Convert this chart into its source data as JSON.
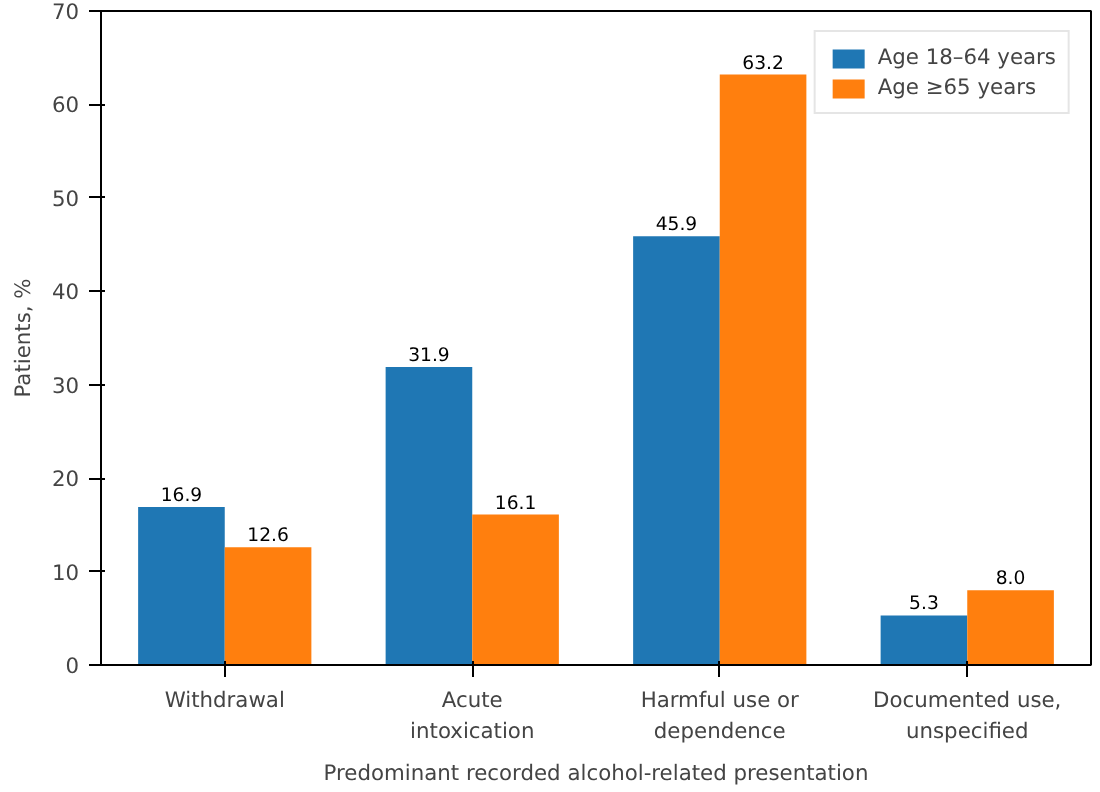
{
  "chart_data": {
    "type": "bar",
    "xlabel": "Predominant recorded alcohol-related presentation",
    "ylabel": "Patients, %",
    "categories": [
      "Withdrawal",
      "Acute intoxication",
      "Harmful use or dependence",
      "Documented use, unspecified"
    ],
    "series": [
      {
        "name": "Age 18–64 years",
        "color": "#1f77b4",
        "values": [
          16.9,
          31.9,
          45.9,
          5.3
        ],
        "value_labels": [
          "16.9",
          "31.9",
          "45.9",
          "5.3"
        ]
      },
      {
        "name": "Age ≥65 years",
        "color": "#ff7f0e",
        "values": [
          12.6,
          16.1,
          63.2,
          8.0
        ],
        "value_labels": [
          "12.6",
          "16.1",
          "63.2",
          "8.0"
        ]
      }
    ],
    "ylim": [
      0,
      70
    ],
    "yticks": [
      0,
      10,
      20,
      30,
      40,
      50,
      60,
      70
    ],
    "grid": false,
    "legend": "top right"
  }
}
